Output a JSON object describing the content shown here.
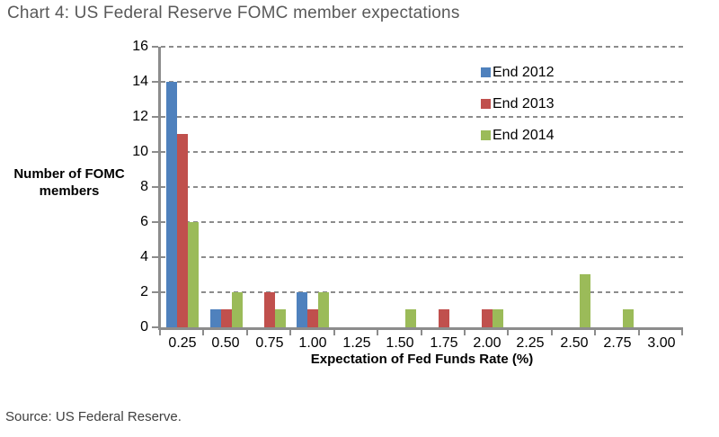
{
  "title": "Chart 4: US Federal Reserve FOMC member expectations",
  "source": "Source: US Federal Reserve.",
  "chart_data": {
    "type": "bar",
    "title": "Chart 4: US Federal Reserve FOMC member expectations",
    "categories": [
      "0.25",
      "0.50",
      "0.75",
      "1.00",
      "1.25",
      "1.50",
      "1.75",
      "2.00",
      "2.25",
      "2.50",
      "2.75",
      "3.00"
    ],
    "series": [
      {
        "name": "End 2012",
        "color": "#4F81BD",
        "values": [
          14,
          1,
          0,
          2,
          0,
          0,
          0,
          0,
          0,
          0,
          0,
          0
        ]
      },
      {
        "name": "End 2013",
        "color": "#C0504D",
        "values": [
          11,
          1,
          2,
          1,
          0,
          0,
          1,
          1,
          0,
          0,
          0,
          0
        ]
      },
      {
        "name": "End 2014",
        "color": "#9BBB59",
        "values": [
          6,
          2,
          1,
          2,
          0,
          1,
          0,
          1,
          0,
          3,
          1,
          0
        ]
      }
    ],
    "xlabel": "Expectation of Fed Funds Rate (%)",
    "ylabel": "Number of FOMC members",
    "ylim": [
      0,
      16
    ],
    "yticks": [
      0,
      2,
      4,
      6,
      8,
      10,
      12,
      14,
      16
    ],
    "grid": "dashed-horizontal",
    "legend_position": "top-right"
  },
  "colors": {
    "axis": "#8c8c8c",
    "gridline": "#8c8c8c",
    "title_text": "#595959",
    "source_text": "#404040",
    "tick_text": "#000000"
  }
}
